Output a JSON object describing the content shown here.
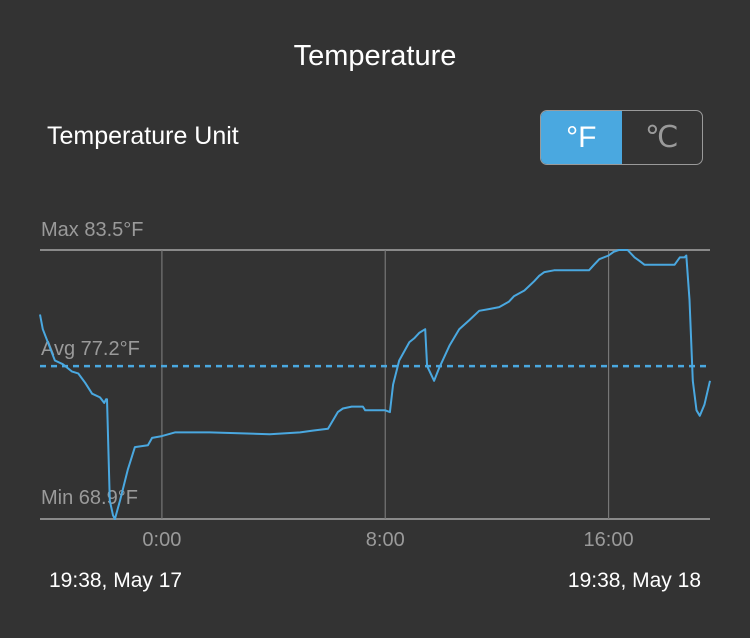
{
  "title": "Temperature",
  "unit_setting": {
    "label": "Temperature Unit",
    "options": [
      "°F",
      "℃"
    ],
    "selected": "°F"
  },
  "colors": {
    "accent": "#4aa8e0",
    "background": "#333333",
    "grid": "#8a8a8a"
  },
  "chart_data": {
    "type": "line",
    "unit": "°F",
    "max_label": "Max 83.5°F",
    "avg_label": "Avg 77.2°F",
    "min_label": "Min 68.9°F",
    "max": 83.5,
    "avg": 77.2,
    "min": 68.9,
    "ylim": [
      68.9,
      83.5
    ],
    "xlim": [
      "May 17 19:38",
      "May 18 19:38"
    ],
    "x_ticks": [
      "0:00",
      "8:00",
      "16:00"
    ],
    "start_label": "19:38,  May 17",
    "end_label": "19:38,  May 18",
    "points": [
      [
        "May 17 19:38",
        80.0
      ],
      [
        "May 17 19:44",
        79.2
      ],
      [
        "May 17 20:10",
        77.5
      ],
      [
        "May 17 20:27",
        77.3
      ],
      [
        "May 17 20:47",
        76.9
      ],
      [
        "May 17 21:00",
        76.8
      ],
      [
        "May 17 21:15",
        76.3
      ],
      [
        "May 17 21:30",
        75.7
      ],
      [
        "May 17 21:47",
        75.5
      ],
      [
        "May 17 21:56",
        75.2
      ],
      [
        "May 17 22:00",
        75.4
      ],
      [
        "May 17 22:02",
        75.4
      ],
      [
        "May 17 22:08",
        69.9
      ],
      [
        "May 17 22:15",
        69.1
      ],
      [
        "May 17 22:19",
        68.9
      ],
      [
        "May 17 22:30",
        69.9
      ],
      [
        "May 17 22:47",
        71.6
      ],
      [
        "May 17 23:02",
        72.8
      ],
      [
        "May 17 23:30",
        72.9
      ],
      [
        "May 17 23:39",
        73.3
      ],
      [
        "May 18 0:00",
        73.4
      ],
      [
        "May 18 0:28",
        73.6
      ],
      [
        "May 18 1:43",
        73.6
      ],
      [
        "May 18 3:52",
        73.5
      ],
      [
        "May 18 4:57",
        73.6
      ],
      [
        "May 18 5:24",
        73.7
      ],
      [
        "May 18 5:57",
        73.8
      ],
      [
        "May 18 6:18",
        74.7
      ],
      [
        "May 18 6:29",
        74.9
      ],
      [
        "May 18 6:48",
        75.0
      ],
      [
        "May 18 7:12",
        75.0
      ],
      [
        "May 18 7:17",
        74.8
      ],
      [
        "May 18 8:00",
        74.8
      ],
      [
        "May 18 8:10",
        74.7
      ],
      [
        "May 18 8:17",
        76.2
      ],
      [
        "May 18 8:30",
        77.5
      ],
      [
        "May 18 8:52",
        78.5
      ],
      [
        "May 18 9:02",
        78.7
      ],
      [
        "May 18 9:13",
        79.0
      ],
      [
        "May 18 9:26",
        79.2
      ],
      [
        "May 18 9:30",
        77.2
      ],
      [
        "May 18 9:45",
        76.4
      ],
      [
        "May 18 9:56",
        77.1
      ],
      [
        "May 18 10:18",
        78.3
      ],
      [
        "May 18 10:39",
        79.2
      ],
      [
        "May 18 11:01",
        79.7
      ],
      [
        "May 18 11:22",
        80.2
      ],
      [
        "May 18 11:44",
        80.3
      ],
      [
        "May 18 12:05",
        80.4
      ],
      [
        "May 18 12:26",
        80.7
      ],
      [
        "May 18 12:37",
        81.0
      ],
      [
        "May 18 12:59",
        81.3
      ],
      [
        "May 18 13:20",
        81.8
      ],
      [
        "May 18 13:31",
        82.1
      ],
      [
        "May 18 13:42",
        82.3
      ],
      [
        "May 18 14:03",
        82.4
      ],
      [
        "May 18 14:53",
        82.4
      ],
      [
        "May 18 15:18",
        82.4
      ],
      [
        "May 18 15:29",
        82.7
      ],
      [
        "May 18 15:40",
        83.0
      ],
      [
        "May 18 16:00",
        83.2
      ],
      [
        "May 18 16:11",
        83.4
      ],
      [
        "May 18 16:22",
        83.5
      ],
      [
        "May 18 16:41",
        83.5
      ],
      [
        "May 18 16:56",
        83.1
      ],
      [
        "May 18 17:07",
        82.9
      ],
      [
        "May 18 17:17",
        82.7
      ],
      [
        "May 18 18:22",
        82.7
      ],
      [
        "May 18 18:33",
        83.1
      ],
      [
        "May 18 18:43",
        83.1
      ],
      [
        "May 18 18:47",
        83.2
      ],
      [
        "May 18 18:54",
        80.8
      ],
      [
        "May 18 19:01",
        76.4
      ],
      [
        "May 18 19:09",
        74.8
      ],
      [
        "May 18 19:16",
        74.5
      ],
      [
        "May 18 19:26",
        75.1
      ],
      [
        "May 18 19:38",
        76.4
      ]
    ]
  }
}
